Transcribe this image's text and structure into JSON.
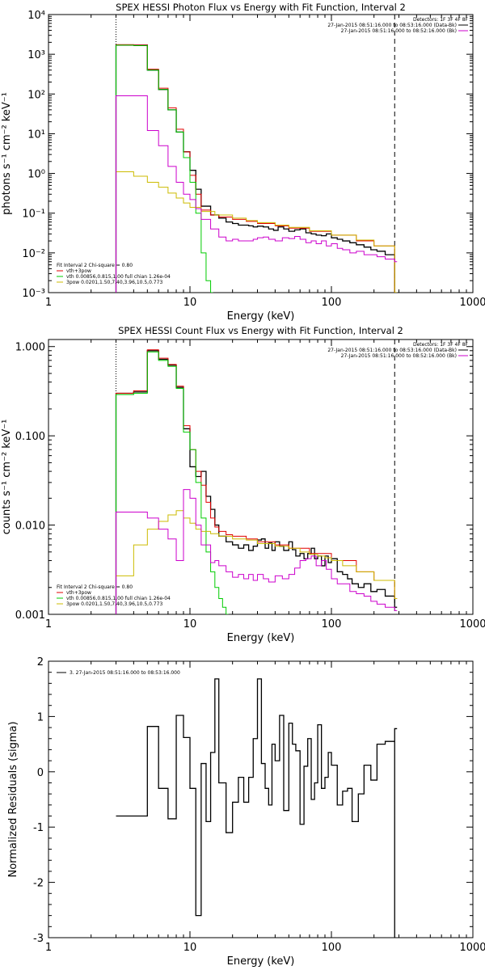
{
  "colors": {
    "black": "#000000",
    "red": "#e00000",
    "green": "#00cc00",
    "magenta": "#cc00cc",
    "yellow": "#ccbb00"
  },
  "chart_data": [
    {
      "type": "line",
      "title": "SPEX HESSI Photon Flux vs Energy with Fit Function, Interval 2",
      "xlabel": "Energy (keV)",
      "ylabel": "photons s⁻¹ cm⁻² keV⁻¹",
      "xscale": "log",
      "yscale": "log",
      "xlim": [
        1,
        1000
      ],
      "ylim": [
        0.001,
        10000
      ],
      "xticks": [
        "1",
        "10",
        "100",
        "1000"
      ],
      "yticks": [
        "10⁻³",
        "10⁻²",
        "10⁻¹",
        "10⁰",
        "10¹",
        "10²",
        "10³",
        "10⁴"
      ],
      "vlines": [
        {
          "x": 3.0,
          "style": "dotted"
        },
        {
          "x": 280,
          "style": "dashed"
        }
      ],
      "legend_top_right": [
        "Detectors: 1F 3F 4F 8F",
        "27-Jan-2015 08:51:16.000 to 08:53:16.000 (Data-Bk)",
        "27-Jan-2015 08:51:16.000 to 08:52:16.000 (Bk)"
      ],
      "legend_bottom_left": [
        "Fit Interval 2   Chi-square = 0.80",
        "vth+3pow",
        "vth 0.00856,0.815,1.00  full chian 1.26e-04",
        "3pow 0.0201,1.50,7.40,3.96,10.5,0.773"
      ],
      "series": [
        {
          "name": "Data-Bk",
          "color": "black",
          "x": [
            3,
            4,
            5,
            6,
            7,
            8,
            9,
            10,
            11,
            12,
            14,
            16,
            18,
            20,
            22,
            24,
            26,
            28,
            30,
            33,
            36,
            39,
            42,
            46,
            50,
            55,
            60,
            66,
            72,
            78,
            85,
            92,
            100,
            110,
            120,
            135,
            150,
            170,
            190,
            210,
            240,
            280
          ],
          "values": [
            1700,
            1700,
            400,
            130,
            40,
            11,
            3.5,
            1.2,
            0.4,
            0.15,
            0.09,
            0.075,
            0.06,
            0.055,
            0.05,
            0.05,
            0.048,
            0.045,
            0.047,
            0.045,
            0.04,
            0.037,
            0.045,
            0.04,
            0.035,
            0.038,
            0.04,
            0.032,
            0.03,
            0.028,
            0.027,
            0.03,
            0.024,
            0.022,
            0.02,
            0.018,
            0.016,
            0.014,
            0.012,
            0.011,
            0.009,
            0.001
          ]
        },
        {
          "name": "vth+3pow",
          "color": "red",
          "x": [
            3,
            4,
            5,
            6,
            7,
            8,
            9,
            10,
            11,
            12,
            14,
            16,
            20,
            25,
            30,
            40,
            50,
            70,
            100,
            150,
            200,
            280
          ],
          "values": [
            1750,
            1700,
            420,
            140,
            45,
            13,
            3.5,
            0.9,
            0.3,
            0.12,
            0.09,
            0.08,
            0.07,
            0.062,
            0.055,
            0.048,
            0.042,
            0.035,
            0.028,
            0.02,
            0.015,
            0.001
          ]
        },
        {
          "name": "vth",
          "color": "green",
          "x": [
            3,
            4,
            5,
            6,
            7,
            8,
            9,
            10,
            11,
            12,
            13,
            14
          ],
          "values": [
            1700,
            1650,
            400,
            130,
            40,
            11,
            2.5,
            0.6,
            0.1,
            0.01,
            0.002,
            0.001
          ]
        },
        {
          "name": "3pow",
          "color": "yellow",
          "x": [
            3,
            4,
            5,
            6,
            7,
            8,
            9,
            10,
            12,
            15,
            20,
            25,
            30,
            40,
            50,
            70,
            100,
            150,
            200,
            280
          ],
          "values": [
            1.1,
            0.85,
            0.6,
            0.45,
            0.32,
            0.24,
            0.18,
            0.14,
            0.11,
            0.09,
            0.075,
            0.065,
            0.058,
            0.05,
            0.044,
            0.036,
            0.028,
            0.021,
            0.015,
            0.001
          ]
        },
        {
          "name": "Bk",
          "color": "magenta",
          "x": [
            3,
            4,
            5,
            6,
            7,
            8,
            9,
            10,
            11,
            12,
            14,
            16,
            18,
            20,
            22,
            25,
            28,
            30,
            33,
            36,
            40,
            45,
            50,
            55,
            60,
            66,
            72,
            78,
            85,
            92,
            100,
            110,
            120,
            135,
            150,
            170,
            190,
            210,
            240,
            280
          ],
          "values": [
            90,
            90,
            12,
            5,
            1.5,
            0.6,
            0.3,
            0.22,
            0.13,
            0.07,
            0.04,
            0.025,
            0.02,
            0.022,
            0.02,
            0.02,
            0.022,
            0.024,
            0.025,
            0.022,
            0.02,
            0.024,
            0.023,
            0.026,
            0.022,
            0.018,
            0.02,
            0.017,
            0.02,
            0.015,
            0.017,
            0.013,
            0.012,
            0.01,
            0.011,
            0.009,
            0.009,
            0.008,
            0.007,
            0.006
          ]
        }
      ]
    },
    {
      "type": "line",
      "title": "SPEX HESSI Count Flux vs Energy with Fit Function, Interval 2",
      "xlabel": "Energy (keV)",
      "ylabel": "counts s⁻¹ cm⁻² keV⁻¹",
      "xscale": "log",
      "yscale": "log",
      "xlim": [
        1,
        1000
      ],
      "ylim": [
        0.001,
        1.2
      ],
      "xticks": [
        "1",
        "10",
        "100",
        "1000"
      ],
      "yticks": [
        "0.001",
        "0.010",
        "0.100",
        "1.000"
      ],
      "vlines": [
        {
          "x": 3.0,
          "style": "dotted"
        },
        {
          "x": 280,
          "style": "dashed"
        }
      ],
      "legend_top_right": [
        "Detectors: 1F 3F 4F 8F",
        "27-Jan-2015 08:51:16.000 to 08:53:16.000 (Data-Bk)",
        "27-Jan-2015 08:51:16.000 to 08:52:16.000 (Bk)"
      ],
      "legend_bottom_left": [
        "Fit Interval 2   Chi-square = 0.80",
        "vth+3pow",
        "vth 0.00856,0.815,1.00  full chian 1.26e-04",
        "3pow 0.0201,1.50,7.40,3.96,10.5,0.773"
      ],
      "series": [
        {
          "name": "Data-Bk",
          "color": "black",
          "x": [
            3,
            4,
            5,
            6,
            7,
            8,
            9,
            10,
            11,
            12,
            13,
            14,
            15,
            16,
            18,
            20,
            22,
            24,
            26,
            28,
            30,
            32,
            34,
            36,
            38,
            40,
            43,
            46,
            50,
            53,
            56,
            60,
            64,
            68,
            72,
            76,
            80,
            85,
            90,
            95,
            100,
            110,
            120,
            130,
            140,
            155,
            170,
            190,
            210,
            240,
            280
          ],
          "values": [
            0.3,
            0.31,
            0.9,
            0.72,
            0.62,
            0.35,
            0.12,
            0.045,
            0.035,
            0.04,
            0.021,
            0.015,
            0.01,
            0.0075,
            0.0065,
            0.006,
            0.0055,
            0.006,
            0.0052,
            0.0058,
            0.0068,
            0.007,
            0.0055,
            0.0063,
            0.0052,
            0.0065,
            0.0058,
            0.0052,
            0.0065,
            0.0053,
            0.0045,
            0.0048,
            0.0042,
            0.0048,
            0.0055,
            0.0042,
            0.0045,
            0.0035,
            0.0045,
            0.0038,
            0.0042,
            0.003,
            0.0028,
            0.0025,
            0.0022,
            0.002,
            0.0022,
            0.0018,
            0.0019,
            0.0016,
            0.0012
          ]
        },
        {
          "name": "vth+3pow",
          "color": "red",
          "x": [
            3,
            4,
            5,
            6,
            7,
            8,
            9,
            10,
            11,
            12,
            13,
            14,
            15,
            16,
            18,
            20,
            25,
            30,
            40,
            50,
            70,
            100,
            150,
            200,
            280
          ],
          "values": [
            0.3,
            0.32,
            0.92,
            0.74,
            0.63,
            0.36,
            0.13,
            0.07,
            0.04,
            0.028,
            0.018,
            0.012,
            0.0095,
            0.0085,
            0.0078,
            0.0075,
            0.007,
            0.0065,
            0.006,
            0.0055,
            0.0048,
            0.004,
            0.003,
            0.0024,
            0.0015
          ]
        },
        {
          "name": "vth",
          "color": "green",
          "x": [
            3,
            4,
            5,
            6,
            7,
            8,
            9,
            10,
            11,
            12,
            13,
            14,
            15,
            16,
            17,
            18
          ],
          "values": [
            0.29,
            0.3,
            0.87,
            0.7,
            0.6,
            0.34,
            0.11,
            0.07,
            0.03,
            0.012,
            0.005,
            0.003,
            0.002,
            0.0015,
            0.0012,
            0.001
          ]
        },
        {
          "name": "3pow",
          "color": "yellow",
          "x": [
            3,
            4,
            5,
            6,
            7,
            8,
            9,
            10,
            11,
            12,
            14,
            16,
            20,
            25,
            30,
            40,
            50,
            60,
            70,
            80,
            90,
            100,
            120,
            150,
            200,
            280
          ],
          "values": [
            0.0027,
            0.006,
            0.009,
            0.011,
            0.013,
            0.0145,
            0.012,
            0.0105,
            0.009,
            0.0085,
            0.008,
            0.0075,
            0.007,
            0.0068,
            0.0062,
            0.0058,
            0.0055,
            0.005,
            0.0047,
            0.0045,
            0.0043,
            0.004,
            0.0035,
            0.003,
            0.0024,
            0.0015
          ]
        },
        {
          "name": "Bk",
          "color": "magenta",
          "x": [
            3,
            4,
            5,
            6,
            7,
            8,
            9,
            10,
            11,
            12,
            13,
            14,
            15,
            16,
            18,
            20,
            22,
            24,
            26,
            28,
            30,
            33,
            36,
            40,
            45,
            50,
            55,
            60,
            66,
            72,
            78,
            85,
            92,
            100,
            110,
            120,
            135,
            150,
            170,
            190,
            210,
            240,
            280
          ],
          "values": [
            0.014,
            0.014,
            0.012,
            0.009,
            0.007,
            0.004,
            0.025,
            0.02,
            0.01,
            0.006,
            0.006,
            0.0038,
            0.004,
            0.0035,
            0.003,
            0.0026,
            0.0028,
            0.0025,
            0.0028,
            0.0024,
            0.0028,
            0.0025,
            0.0023,
            0.0027,
            0.0025,
            0.0028,
            0.0033,
            0.004,
            0.0042,
            0.0045,
            0.0035,
            0.004,
            0.0032,
            0.0025,
            0.0022,
            0.0022,
            0.0018,
            0.0017,
            0.0016,
            0.0014,
            0.0013,
            0.0012,
            0.0011
          ]
        }
      ]
    },
    {
      "type": "line",
      "title": "",
      "xlabel": "Energy (keV)",
      "ylabel": "Normalized Residuals (sigma)",
      "xscale": "log",
      "yscale": "linear",
      "xlim": [
        1,
        1000
      ],
      "ylim": [
        -3,
        2
      ],
      "xticks": [
        "1",
        "10",
        "100",
        "1000"
      ],
      "yticks": [
        "-3",
        "-2",
        "-1",
        "0",
        "1",
        "2"
      ],
      "legend_top_left": [
        "3. 27-Jan-2015 08:51:16.000 to 08:53:16.000"
      ],
      "series": [
        {
          "name": "3. 27-Jan-2015 08:51:16.000 to 08:53:16.000",
          "color": "black",
          "x": [
            3,
            4,
            5,
            6,
            7,
            8,
            9,
            10,
            11,
            12,
            13,
            14,
            15,
            16,
            18,
            20,
            22,
            24,
            26,
            28,
            30,
            32,
            34,
            36,
            38,
            40,
            43,
            46,
            50,
            53,
            56,
            60,
            64,
            68,
            72,
            76,
            80,
            85,
            90,
            95,
            100,
            110,
            120,
            130,
            140,
            155,
            170,
            190,
            210,
            240,
            280
          ],
          "values": [
            -0.8,
            -0.8,
            0.82,
            -0.3,
            -0.85,
            1.02,
            0.62,
            -0.3,
            -2.6,
            0.15,
            -0.9,
            0.35,
            1.68,
            -0.2,
            -1.1,
            -0.55,
            -0.1,
            -0.55,
            -0.1,
            0.6,
            1.68,
            0.15,
            -0.3,
            -0.6,
            0.5,
            0.2,
            1.02,
            -0.7,
            0.88,
            0.5,
            0.38,
            -0.95,
            0.1,
            0.6,
            -0.5,
            -0.2,
            0.85,
            -0.3,
            -0.1,
            0.35,
            0.12,
            -0.6,
            -0.35,
            -0.3,
            -0.9,
            -0.4,
            0.12,
            -0.15,
            0.5,
            0.55,
            0.78
          ]
        }
      ]
    }
  ]
}
